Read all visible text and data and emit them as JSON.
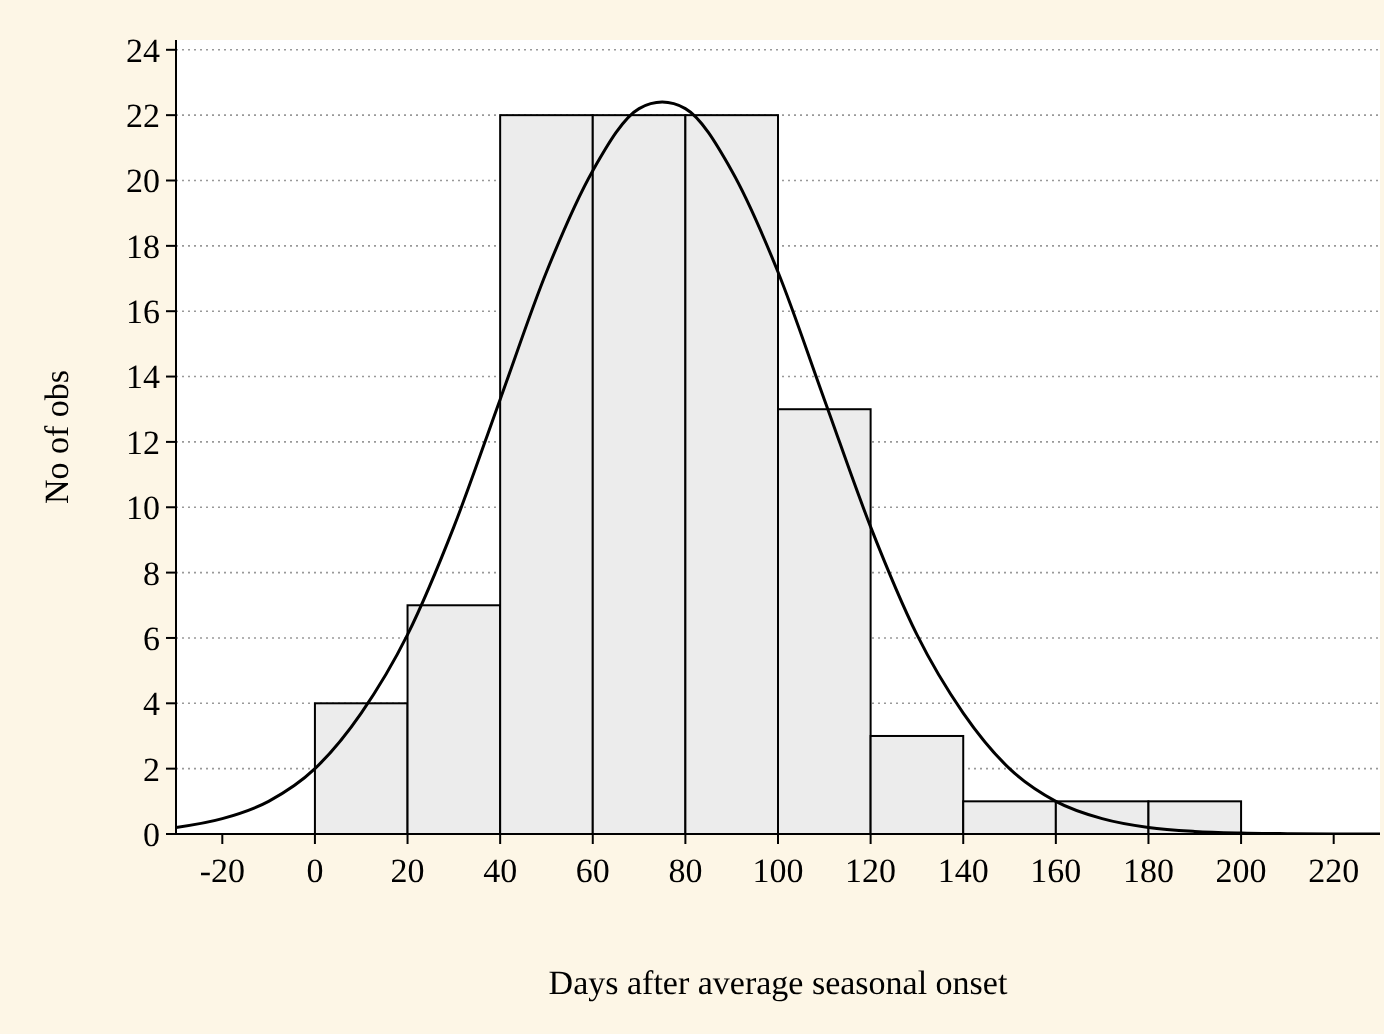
{
  "chart_data": {
    "type": "histogram",
    "xlabel": "Days after average seasonal onset",
    "ylabel": "No of obs",
    "bins": [
      0,
      20,
      40,
      60,
      80,
      100,
      120,
      140,
      160,
      180,
      200
    ],
    "values": [
      4,
      7,
      22,
      22,
      22,
      13,
      3,
      1,
      1,
      1
    ],
    "color": "#ececec",
    "series": [
      {
        "type": "line",
        "color": "#000000",
        "x": [
          -30,
          -20,
          -10,
          0,
          10,
          20,
          30,
          40,
          50,
          60,
          70,
          75,
          80,
          90,
          100,
          110,
          120,
          130,
          140,
          150,
          160,
          170,
          180,
          190,
          200,
          210,
          220,
          230
        ],
        "values": [
          0.2,
          0.47,
          1.0,
          2.0,
          3.7,
          6.1,
          9.4,
          13.3,
          17.2,
          20.3,
          22.2,
          22.4,
          22.2,
          20.3,
          17.2,
          13.3,
          9.4,
          6.1,
          3.7,
          2.0,
          1.0,
          0.47,
          0.2,
          0.08,
          0.03,
          0.01,
          0,
          0
        ]
      }
    ],
    "xlim": [
      -30,
      230
    ],
    "xticks": [
      -20,
      0,
      20,
      40,
      60,
      80,
      100,
      120,
      140,
      160,
      180,
      200,
      220
    ],
    "ylim": [
      0,
      24.3
    ],
    "yticks": [
      0,
      2,
      4,
      6,
      8,
      10,
      12,
      14,
      16,
      18,
      20,
      22,
      24
    ],
    "grid": "y"
  }
}
